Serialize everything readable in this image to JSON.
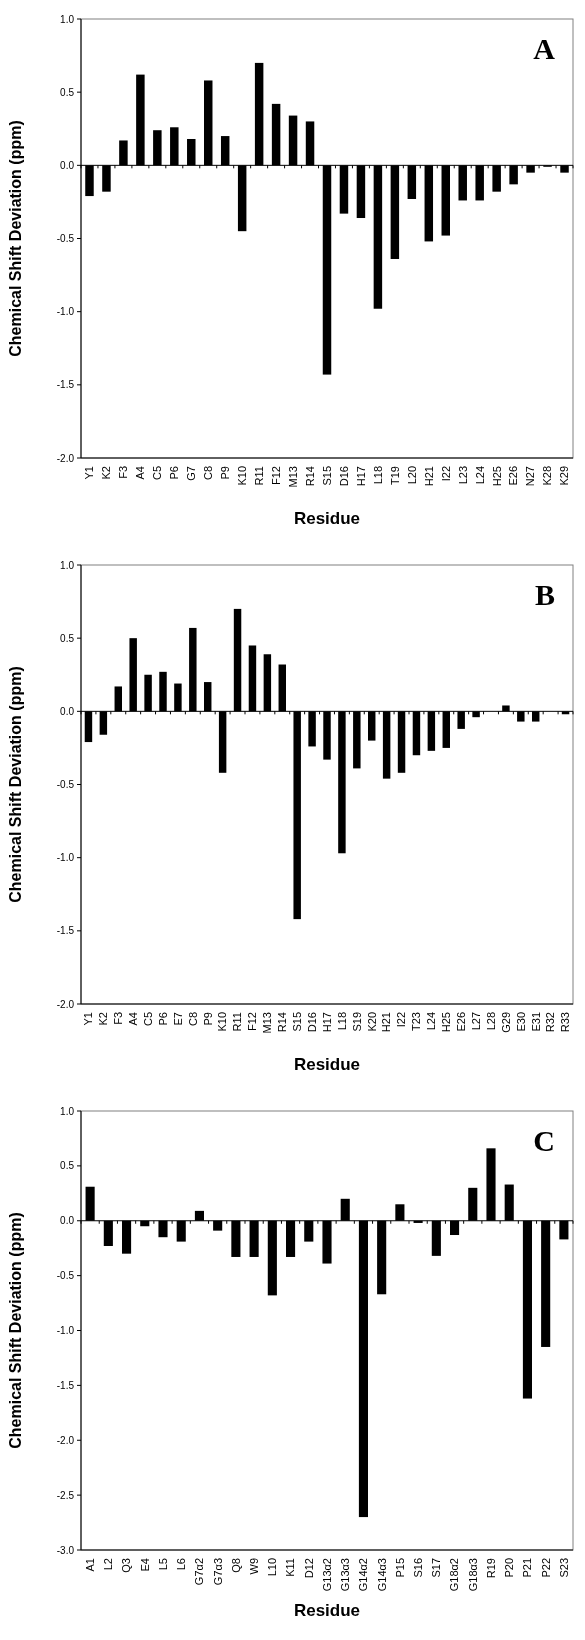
{
  "chart_data": [
    {
      "type": "bar",
      "xlabel": "Residue",
      "ylabel": "Chemical Shift Deviation (ppm)",
      "annotations": [
        "A"
      ],
      "categories": [
        "Y1",
        "K2",
        "F3",
        "A4",
        "C5",
        "P6",
        "G7",
        "C8",
        "P9",
        "K10",
        "R11",
        "F12",
        "M13",
        "R14",
        "S15",
        "D16",
        "H17",
        "L18",
        "T19",
        "L20",
        "H21",
        "I22",
        "L23",
        "L24",
        "H25",
        "E26",
        "N27",
        "K28",
        "K29"
      ],
      "values": [
        -0.21,
        -0.18,
        0.17,
        0.62,
        0.24,
        0.26,
        0.18,
        0.58,
        0.2,
        -0.45,
        0.7,
        0.42,
        0.34,
        0.3,
        -1.43,
        -0.33,
        -0.36,
        -0.98,
        -0.64,
        -0.23,
        -0.52,
        -0.48,
        -0.24,
        -0.24,
        -0.18,
        -0.13,
        -0.05,
        -0.01,
        -0.05
      ],
      "color": "#000000",
      "ylim": [
        -2,
        1
      ],
      "yticks": [
        {
          "value": -2,
          "label": "-2.0"
        },
        {
          "value": -1.5,
          "label": "-1.5"
        },
        {
          "value": -1,
          "label": "-1.0"
        },
        {
          "value": -0.5,
          "label": "-0.5"
        },
        {
          "value": 0,
          "label": "0.0"
        },
        {
          "value": 0.5,
          "label": "0.5"
        },
        {
          "value": 1,
          "label": "1.0"
        }
      ]
    },
    {
      "type": "bar",
      "xlabel": "Residue",
      "ylabel": "Chemical Shift Deviation (ppm)",
      "annotations": [
        "B"
      ],
      "categories": [
        "Y1",
        "K2",
        "F3",
        "A4",
        "C5",
        "P6",
        "E7",
        "C8",
        "P9",
        "K10",
        "R11",
        "F12",
        "M13",
        "R14",
        "S15",
        "D16",
        "H17",
        "L18",
        "S19",
        "K20",
        "H21",
        "I22",
        "T23",
        "L24",
        "H25",
        "E26",
        "L27",
        "L28",
        "G29",
        "E30",
        "E31",
        "R32",
        "R33"
      ],
      "values": [
        -0.21,
        -0.16,
        0.17,
        0.5,
        0.25,
        0.27,
        0.19,
        0.57,
        0.2,
        -0.42,
        0.7,
        0.45,
        0.39,
        0.32,
        -1.42,
        -0.24,
        -0.33,
        -0.97,
        -0.39,
        -0.2,
        -0.46,
        -0.42,
        -0.3,
        -0.27,
        -0.25,
        -0.12,
        -0.04,
        0,
        0.04,
        -0.07,
        -0.07,
        0,
        -0.02
      ],
      "color": "#000000",
      "ylim": [
        -2,
        1
      ],
      "yticks": [
        {
          "value": -2,
          "label": "-2.0"
        },
        {
          "value": -1.5,
          "label": "-1.5"
        },
        {
          "value": -1,
          "label": "-1.0"
        },
        {
          "value": -0.5,
          "label": "-0.5"
        },
        {
          "value": 0,
          "label": "0.0"
        },
        {
          "value": 0.5,
          "label": "0.5"
        },
        {
          "value": 1,
          "label": "1.0"
        }
      ]
    },
    {
      "type": "bar",
      "xlabel": "Residue",
      "ylabel": "Chemical Shift Deviation (ppm)",
      "annotations": [
        "C"
      ],
      "categories": [
        "A1",
        "L2",
        "Q3",
        "E4",
        "L5",
        "L6",
        "G7α2",
        "G7α3",
        "Q8",
        "W9",
        "L10",
        "K11",
        "D12",
        "G13α2",
        "G13α3",
        "G14α2",
        "G14α3",
        "P15",
        "S16",
        "S17",
        "G18α2",
        "G18α3",
        "R19",
        "P20",
        "P21",
        "P22",
        "S23"
      ],
      "values": [
        0.31,
        -0.23,
        -0.3,
        -0.05,
        -0.15,
        -0.19,
        0.09,
        -0.09,
        -0.33,
        -0.33,
        -0.68,
        -0.33,
        -0.19,
        -0.39,
        0.2,
        -2.7,
        -0.67,
        0.15,
        -0.02,
        -0.32,
        -0.13,
        0.3,
        0.66,
        0.33,
        -1.62,
        -1.15,
        -0.17
      ],
      "color": "#000000",
      "ylim": [
        -3,
        1
      ],
      "yticks": [
        {
          "value": -3,
          "label": "-3.0"
        },
        {
          "value": -2.5,
          "label": "-2.5"
        },
        {
          "value": -2,
          "label": "-2.0"
        },
        {
          "value": -1.5,
          "label": "-1.5"
        },
        {
          "value": -1,
          "label": "-1.0"
        },
        {
          "value": -0.5,
          "label": "-0.5"
        },
        {
          "value": 0,
          "label": "0.0"
        },
        {
          "value": 0.5,
          "label": "0.5"
        },
        {
          "value": 1,
          "label": "1.0"
        }
      ]
    }
  ]
}
